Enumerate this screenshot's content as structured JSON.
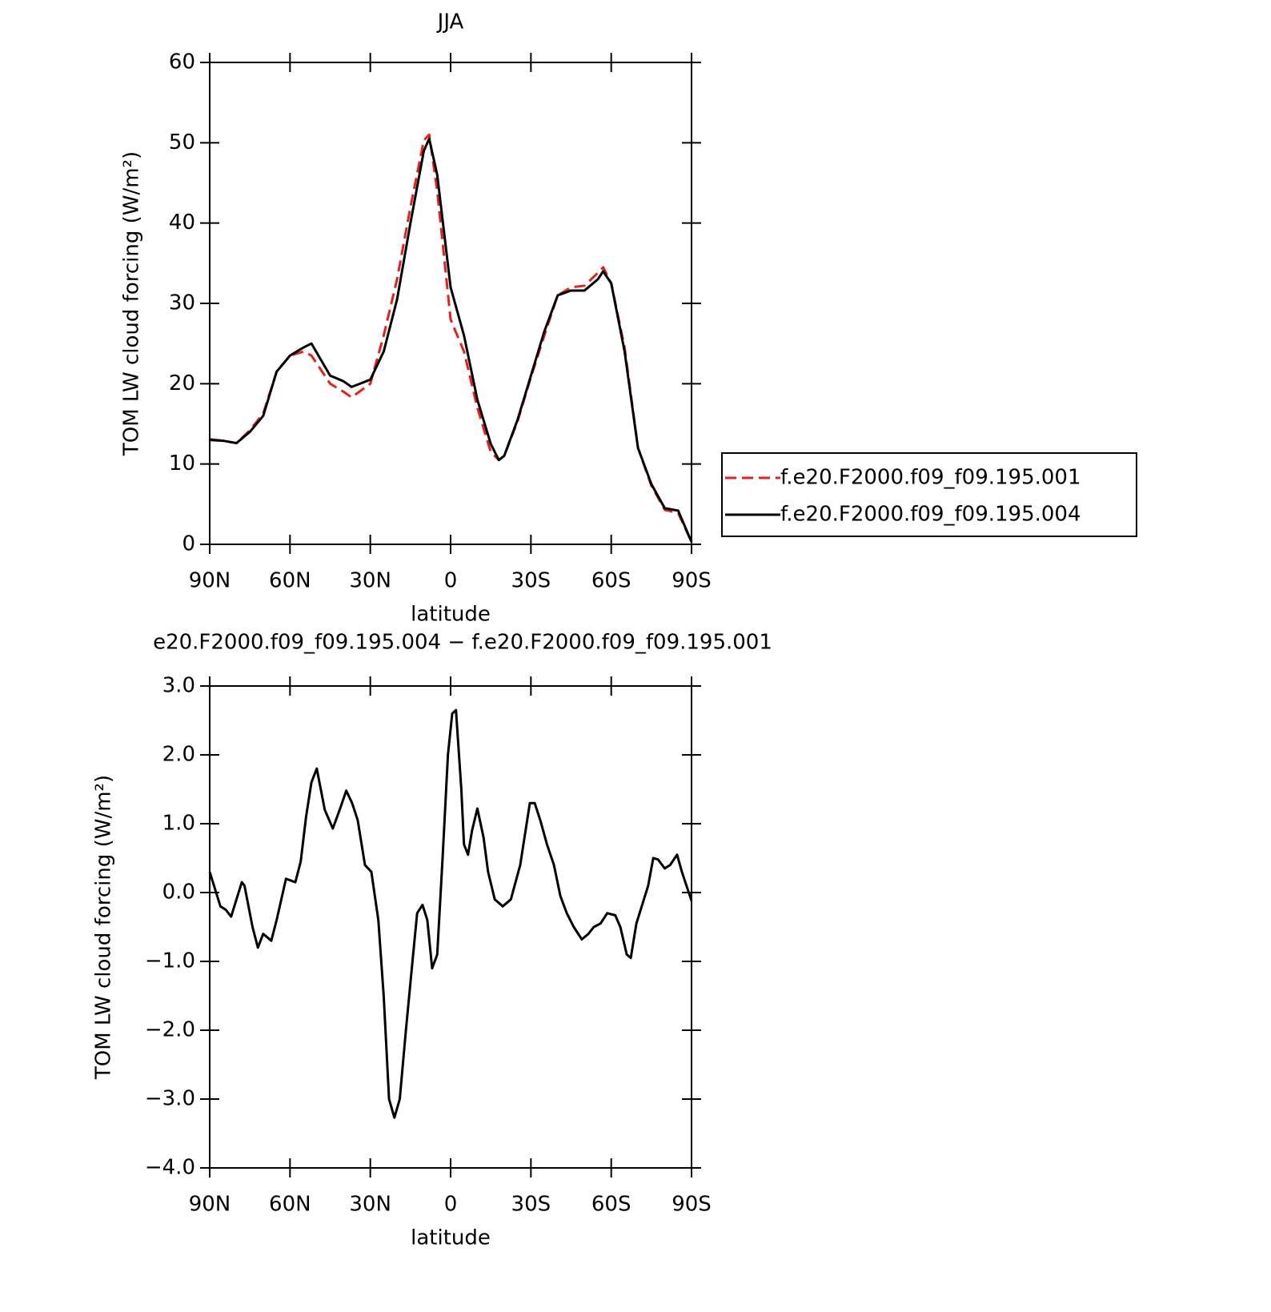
{
  "chart_data": [
    {
      "type": "line",
      "title": "JJA",
      "xlabel": "latitude",
      "ylabel": "TOM LW cloud forcing (W/m²)",
      "x": [
        90,
        85,
        80,
        75,
        70,
        65,
        60,
        55,
        52,
        45,
        40,
        37,
        30,
        25,
        20,
        15,
        10,
        8,
        5,
        0,
        -5,
        -10,
        -15,
        -18,
        -20,
        -25,
        -30,
        -35,
        -40,
        -45,
        -50,
        -55,
        -57,
        -60,
        -65,
        -70,
        -75,
        -80,
        -85,
        -90
      ],
      "series": [
        {
          "name": "f.e20.F2000.f09_f09.195.001",
          "color": "#e8201c",
          "dashed": true,
          "values": [
            13.1,
            12.9,
            12.6,
            14.2,
            16.3,
            21.5,
            23.5,
            24,
            23.5,
            20,
            19,
            18.3,
            20,
            26,
            33,
            42,
            50.3,
            51,
            44,
            28,
            24,
            17,
            11.5,
            10.5,
            11,
            15.3,
            20.8,
            26,
            31,
            32,
            32.2,
            33.8,
            34.5,
            32.5,
            24.5,
            12,
            7.3,
            4.3,
            3.9,
            0.3
          ]
        },
        {
          "name": "f.e20.F2000.f09_f09.195.004",
          "color": "#000000",
          "dashed": false,
          "values": [
            13,
            12.9,
            12.6,
            14,
            16,
            21.5,
            23.5,
            24.5,
            25,
            21,
            20.3,
            19.6,
            20.5,
            24,
            30.5,
            40,
            49,
            50.5,
            46,
            32,
            26,
            18,
            12.5,
            10.5,
            11,
            15.5,
            21,
            26.5,
            31,
            31.6,
            31.6,
            33,
            34,
            32.5,
            24,
            12,
            7.5,
            4.5,
            4.2,
            0.3
          ]
        }
      ],
      "xlim": [
        90,
        -90
      ],
      "xticks": [
        {
          "value": 90,
          "label": "90N"
        },
        {
          "value": 60,
          "label": "60N"
        },
        {
          "value": 30,
          "label": "30N"
        },
        0,
        {
          "value": -30,
          "label": "30S"
        },
        {
          "value": -60,
          "label": "60S"
        },
        {
          "value": -90,
          "label": "90S"
        }
      ],
      "ylim": [
        0,
        60
      ],
      "yticks": [
        0,
        10,
        20,
        30,
        40,
        50,
        60
      ],
      "legend": "right"
    },
    {
      "type": "line",
      "title": "e20.F2000.f09_f09.195.004 − f.e20.F2000.f09_f09.195.001",
      "xlabel": "latitude",
      "ylabel": "TOM LW cloud forcing (W/m²)",
      "x": [
        90,
        86,
        84,
        82,
        80,
        78,
        77,
        74,
        72,
        70,
        67,
        65,
        61.5,
        58,
        56,
        54,
        52,
        50,
        47,
        44,
        41,
        39,
        36.8,
        34.7,
        32,
        29.6,
        27,
        25,
        23,
        21,
        19,
        16.7,
        14,
        12.5,
        10.5,
        8.7,
        6.9,
        5,
        3,
        1,
        -0.6,
        -2,
        -4,
        -5,
        -6.5,
        -8,
        -10,
        -12.3,
        -14,
        -16.5,
        -19.5,
        -22.5,
        -26,
        -29.6,
        -31.4,
        -33.5,
        -36,
        -38.6,
        -41,
        -43.4,
        -46,
        -49,
        -51.5,
        -53.5,
        -56,
        -58.5,
        -61.5,
        -63.4,
        -65.8,
        -67.3,
        -69.4,
        -71.8,
        -73.8,
        -75.7,
        -77.5,
        -80,
        -82,
        -84.6,
        -86.4,
        -90
      ],
      "series": [
        {
          "name": "difference",
          "color": "#000000",
          "dashed": false,
          "values": [
            0.3,
            -0.2,
            -0.25,
            -0.35,
            -0.1,
            0.15,
            0.1,
            -0.5,
            -0.8,
            -0.6,
            -0.7,
            -0.4,
            0.2,
            0.15,
            0.45,
            1.1,
            1.6,
            1.8,
            1.2,
            0.93,
            1.25,
            1.48,
            1.3,
            1.05,
            0.4,
            0.3,
            -0.4,
            -1.5,
            -3.0,
            -3.27,
            -3.0,
            -2.0,
            -0.9,
            -0.3,
            -0.18,
            -0.4,
            -1.1,
            -0.9,
            0.5,
            2.0,
            2.6,
            2.65,
            1.5,
            0.7,
            0.55,
            0.9,
            1.22,
            0.8,
            0.3,
            -0.1,
            -0.2,
            -0.1,
            0.4,
            1.3,
            1.3,
            1.05,
            0.7,
            0.4,
            -0.05,
            -0.3,
            -0.5,
            -0.68,
            -0.6,
            -0.5,
            -0.45,
            -0.3,
            -0.33,
            -0.5,
            -0.9,
            -0.95,
            -0.45,
            -0.15,
            0.1,
            0.5,
            0.48,
            0.35,
            0.4,
            0.55,
            0.3,
            -0.12
          ]
        }
      ],
      "xlim": [
        90,
        -90
      ],
      "xticks": [
        {
          "value": 90,
          "label": "90N"
        },
        {
          "value": 60,
          "label": "60N"
        },
        {
          "value": 30,
          "label": "30N"
        },
        0,
        {
          "value": -30,
          "label": "30S"
        },
        {
          "value": -60,
          "label": "60S"
        },
        {
          "value": -90,
          "label": "90S"
        }
      ],
      "ylim": [
        -4,
        3
      ],
      "yticks": [
        {
          "value": -4,
          "label": "−4.0"
        },
        {
          "value": -3,
          "label": "−3.0"
        },
        {
          "value": -2,
          "label": "−2.0"
        },
        {
          "value": -1,
          "label": "−1.0"
        },
        {
          "value": 0,
          "label": "0.0"
        },
        {
          "value": 1,
          "label": "1.0"
        },
        {
          "value": 2,
          "label": "2.0"
        },
        {
          "value": 3,
          "label": "3.0"
        }
      ]
    }
  ]
}
